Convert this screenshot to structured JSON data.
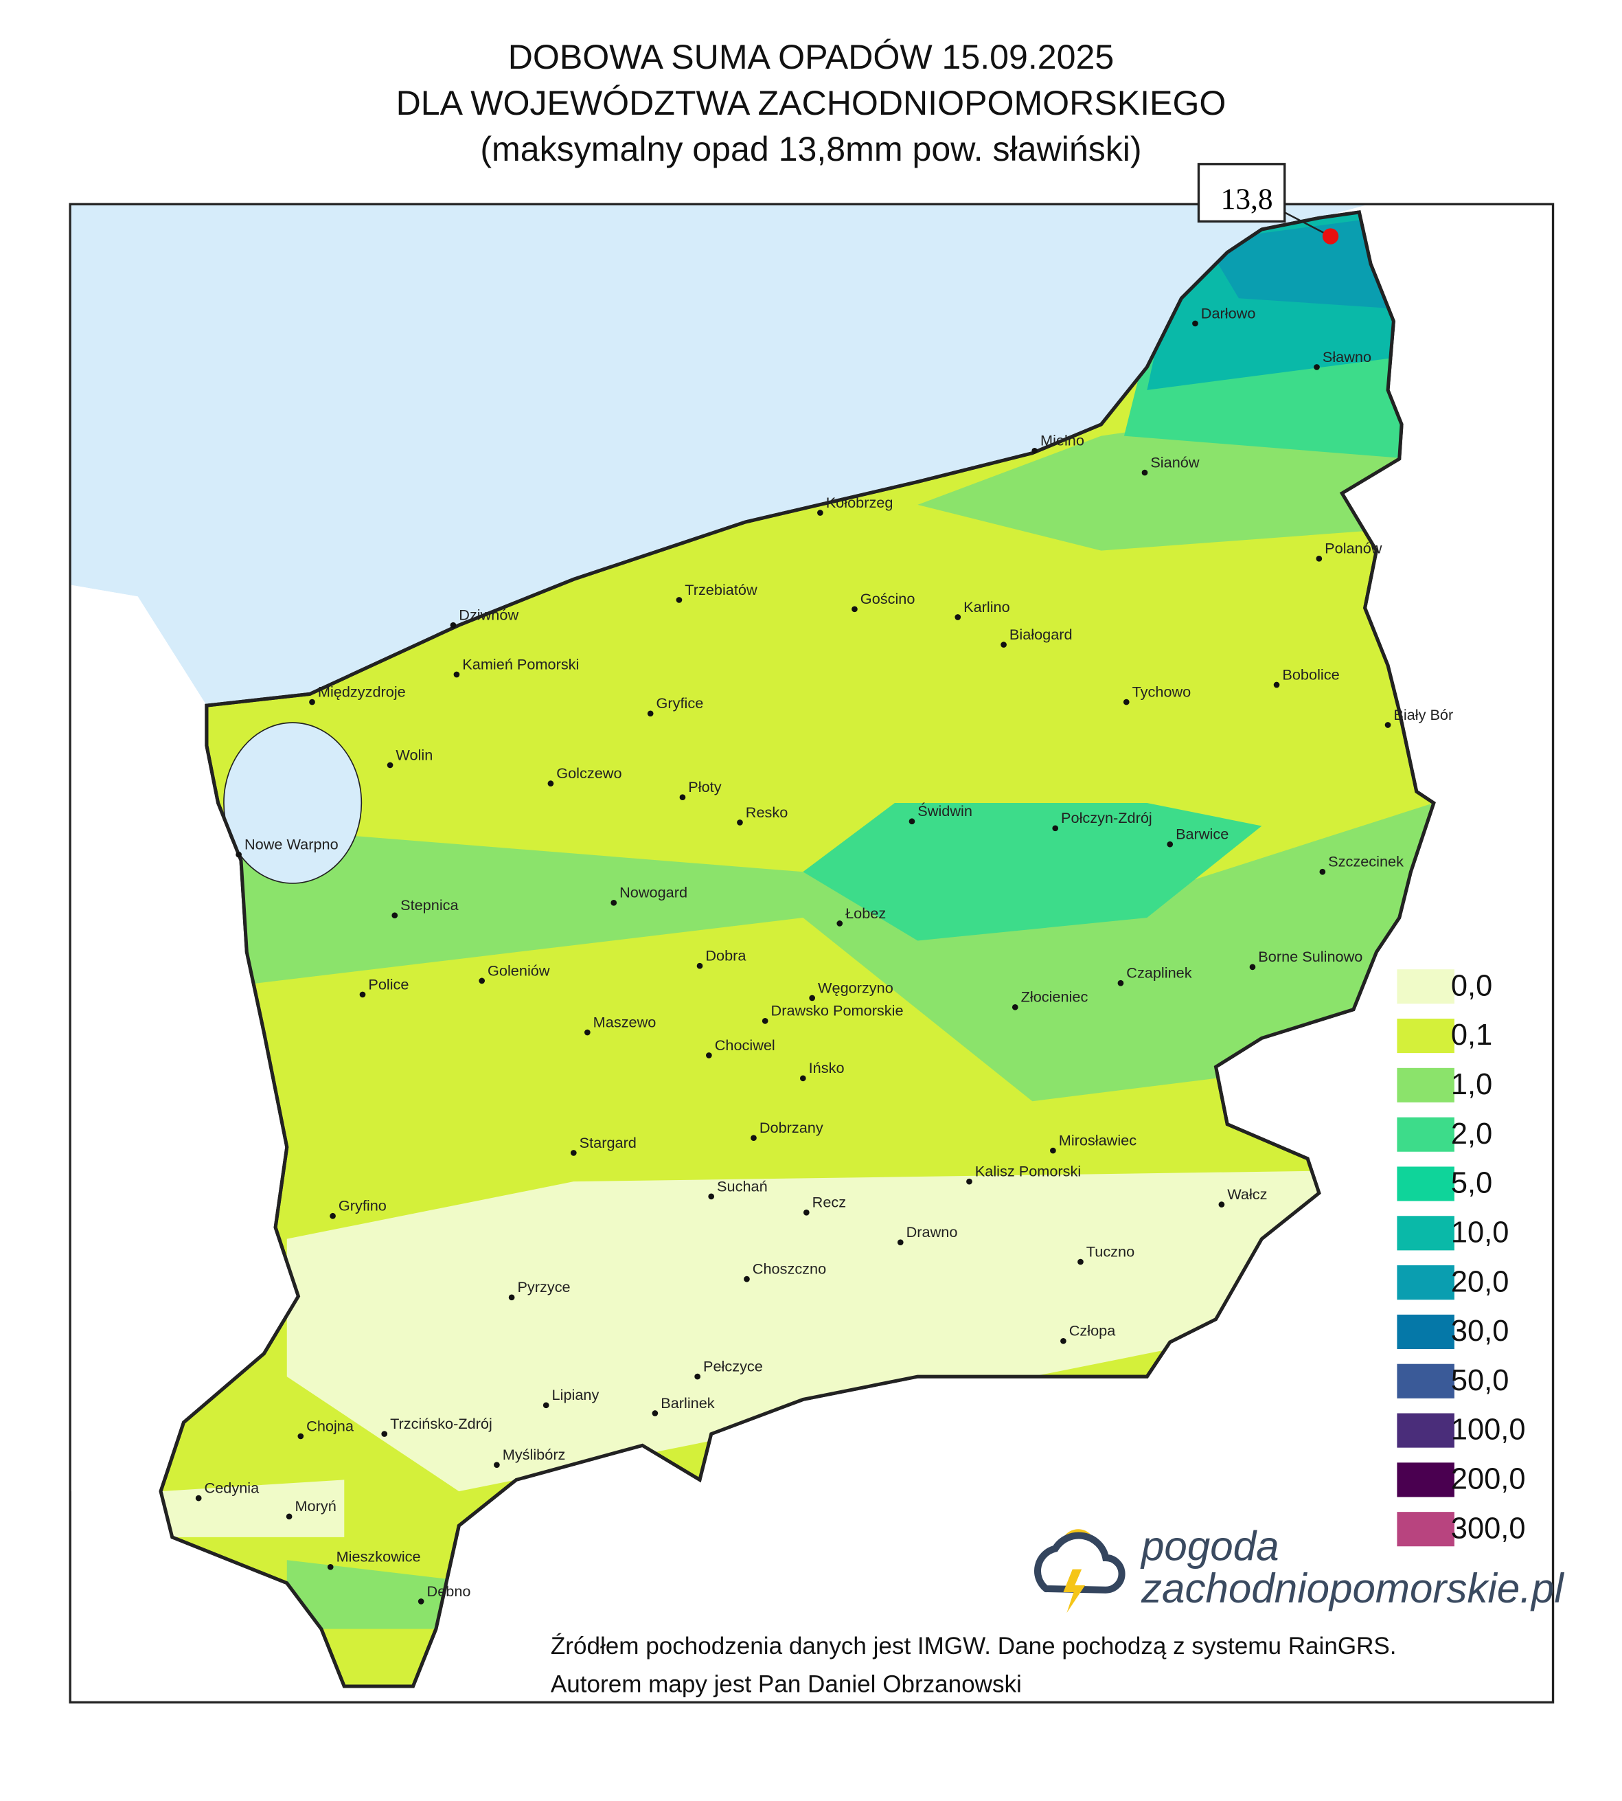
{
  "title": {
    "lines": [
      "DOBOWA SUMA OPADÓW 15.09.2025",
      "DLA WOJEWÓDZTWA ZACHODNIOPOMORSKIEGO",
      "(maksymalny opad 13,8mm pow. sławiński)"
    ]
  },
  "max_marker": {
    "label": "13,8"
  },
  "cities": [
    "Darłowo",
    "Sławno",
    "Mielno",
    "Sianów",
    "Kołobrzeg",
    "Polanów",
    "Trzebiatów",
    "Gościno",
    "Karlino",
    "Białogard",
    "Dziwnów",
    "Kamień Pomorski",
    "Bobolice",
    "Międzyzdroje",
    "Tychowo",
    "Gryfice",
    "Biały Bór",
    "Wolin",
    "Golczewo",
    "Płoty",
    "Resko",
    "Świdwin",
    "Połczyn-Zdrój",
    "Barwice",
    "Nowe Warpno",
    "Szczecinek",
    "Nowogard",
    "Stepnica",
    "Łobez",
    "Dobra",
    "Goleniów",
    "Borne Sulinowo",
    "Czaplinek",
    "Police",
    "Węgorzyno",
    "Złocieniec",
    "Drawsko Pomorskie",
    "Maszewo",
    "Chociwel",
    "Ińsko",
    "Dobrzany",
    "Mirosławiec",
    "Stargard",
    "Kalisz Pomorski",
    "Suchań",
    "Wałcz",
    "Gryfino",
    "Recz",
    "Drawno",
    "Tuczno",
    "Choszczno",
    "Pyrzyce",
    "Człopa",
    "Pełczyce",
    "Lipiany",
    "Barlinek",
    "Chojna",
    "Trzcińsko-Zdrój",
    "Myślibórz",
    "Cedynia",
    "Moryń",
    "Mieszkowice",
    "Dębno"
  ],
  "legend": [
    {
      "label": "0,0",
      "color": "#f0fbc8"
    },
    {
      "label": "0,1",
      "color": "#d4f03a"
    },
    {
      "label": "1,0",
      "color": "#8be36b"
    },
    {
      "label": "2,0",
      "color": "#3ddc8a"
    },
    {
      "label": "5,0",
      "color": "#0fd49a"
    },
    {
      "label": "10,0",
      "color": "#0ab9a8"
    },
    {
      "label": "20,0",
      "color": "#0a9eb0"
    },
    {
      "label": "30,0",
      "color": "#0578a8"
    },
    {
      "label": "50,0",
      "color": "#3a5a98"
    },
    {
      "label": "100,0",
      "color": "#4a2d7a"
    },
    {
      "label": "200,0",
      "color": "#4a0050"
    },
    {
      "label": "300,0",
      "color": "#b8447f"
    }
  ],
  "logo": {
    "name": "pogoda",
    "domain": "zachodniopomorskie.pl"
  },
  "footer": [
    "Źródłem pochodzenia danych jest IMGW. Dane pochodzą z systemu RainGRS.",
    "Autorem mapy jest Pan Daniel Obrzanowski"
  ]
}
